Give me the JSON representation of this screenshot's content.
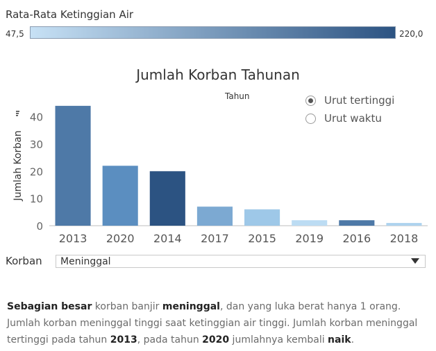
{
  "legend": {
    "title": "Rata-Rata Ketinggian Air",
    "min_label": "47,5",
    "max_label": "220,0",
    "min_color": "#c7e1f5",
    "max_color": "#2c5382"
  },
  "chart_title": "Jumlah Korban Tahunan",
  "header_label": "Tahun",
  "sort_options": [
    {
      "label": "Urut tertinggi",
      "selected": true
    },
    {
      "label": "Urut waktu",
      "selected": false
    }
  ],
  "filter": {
    "label": "Korban",
    "value": "Meninggal"
  },
  "narrative": {
    "s1a": "Sebagian besar",
    "s1b": " korban banjir ",
    "s1c": "meninggal",
    "s1d": ", dan yang luka berat hanya 1 orang. Jumlah korban meninggal tinggi saat ketinggian air tinggi. Jumlah korban meninggal tertinggi pada tahun ",
    "s1e": "2013",
    "s1f": ", pada tahun ",
    "s1g": "2020",
    "s1h": " jumlahnya kembali ",
    "s1i": "naik",
    "s1j": "."
  },
  "chart_data": {
    "type": "bar",
    "title": "Jumlah Korban Tahunan",
    "xlabel": "Tahun",
    "ylabel": "Jumlah Korban",
    "categories": [
      "2013",
      "2020",
      "2014",
      "2017",
      "2015",
      "2019",
      "2016",
      "2018"
    ],
    "values": [
      44,
      22,
      20,
      7,
      6,
      2,
      2,
      1
    ],
    "colors": [
      "#4e79a7",
      "#5b8ec0",
      "#2c5382",
      "#7ca9d2",
      "#9ec8e8",
      "#bcdcf3",
      "#4e79a7",
      "#aed3ee"
    ],
    "yticks": [
      0,
      10,
      20,
      30,
      40
    ],
    "ylim": [
      0,
      46
    ],
    "grid": false
  }
}
